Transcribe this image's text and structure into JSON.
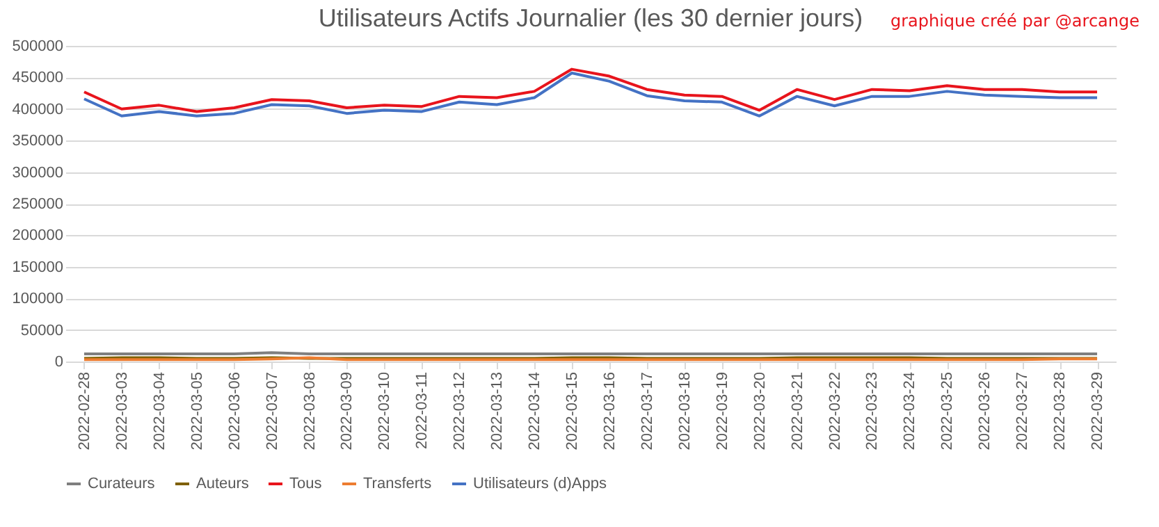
{
  "chart_data": {
    "type": "line",
    "title": "Utilisateurs Actifs Journalier (les 30 dernier jours)",
    "annotations": [
      "graphique créé par @arcange"
    ],
    "categories": [
      "2022-02-28",
      "2022-03-03",
      "2022-03-04",
      "2022-03-05",
      "2022-03-06",
      "2022-03-07",
      "2022-03-08",
      "2022-03-09",
      "2022-03-10",
      "2022-03-11",
      "2022-03-12",
      "2022-03-13",
      "2022-03-14",
      "2022-03-15",
      "2022-03-16",
      "2022-03-17",
      "2022-03-18",
      "2022-03-19",
      "2022-03-20",
      "2022-03-21",
      "2022-03-22",
      "2022-03-23",
      "2022-03-24",
      "2022-03-25",
      "2022-03-26",
      "2022-03-27",
      "2022-03-28",
      "2022-03-29"
    ],
    "series": [
      {
        "name": "Curateurs",
        "color": "#7f7f7f",
        "values": [
          12000,
          12000,
          12000,
          12000,
          12000,
          14000,
          12000,
          12000,
          12000,
          12000,
          12000,
          12000,
          12000,
          12000,
          12000,
          12000,
          12000,
          12000,
          12000,
          12000,
          12000,
          12000,
          12000,
          12000,
          12000,
          12000,
          12000,
          12000
        ]
      },
      {
        "name": "Auteurs",
        "color": "#7f6000",
        "values": [
          5000,
          6000,
          6000,
          5000,
          5000,
          6000,
          5000,
          5000,
          5000,
          5000,
          5000,
          5000,
          5000,
          6000,
          6000,
          5000,
          5000,
          5000,
          5000,
          6000,
          6000,
          6000,
          6000,
          5000,
          5000,
          5000,
          5000,
          5000
        ]
      },
      {
        "name": "Tous",
        "color": "#e8141c",
        "values": [
          427000,
          400000,
          406000,
          396000,
          402000,
          415000,
          413000,
          402000,
          406000,
          404000,
          420000,
          418000,
          428000,
          463000,
          452000,
          431000,
          422000,
          420000,
          398000,
          431000,
          415000,
          431000,
          429000,
          437000,
          431000,
          431000,
          427000,
          427000
        ]
      },
      {
        "name": "Transferts",
        "color": "#ed7d31",
        "values": [
          3000,
          3000,
          3000,
          3000,
          3000,
          4000,
          6000,
          3000,
          3000,
          3000,
          3000,
          3000,
          3000,
          3000,
          3000,
          3000,
          3000,
          3000,
          3000,
          3000,
          3000,
          3000,
          3000,
          3000,
          3000,
          3000,
          4000,
          4000
        ]
      },
      {
        "name": "Utilisateurs (d)Apps",
        "color": "#4472c4",
        "values": [
          416000,
          389000,
          396000,
          389000,
          393000,
          407000,
          405000,
          393000,
          398000,
          396000,
          411000,
          407000,
          418000,
          457000,
          444000,
          421000,
          413000,
          411000,
          389000,
          420000,
          405000,
          420000,
          420000,
          428000,
          422000,
          420000,
          418000,
          418000
        ]
      }
    ],
    "ylim": [
      0,
      500000
    ],
    "yticks": [
      0,
      50000,
      100000,
      150000,
      200000,
      250000,
      300000,
      350000,
      400000,
      450000,
      500000
    ],
    "grid": "y",
    "legend": "bottom",
    "line_style": "solid",
    "marker": "none"
  }
}
